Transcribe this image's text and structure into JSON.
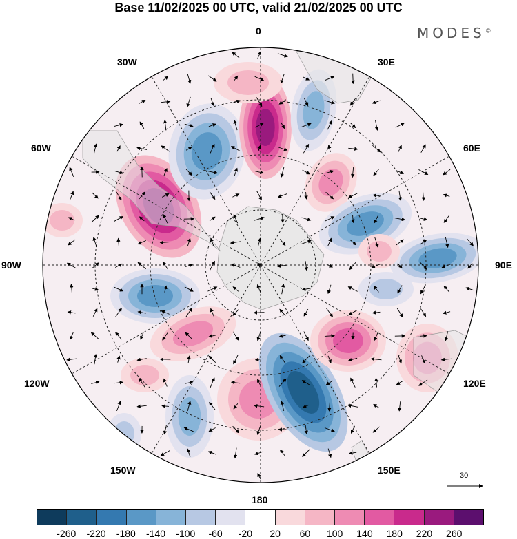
{
  "title": "Base 11/02/2025 00 UTC, valid 21/02/2025 00 UTC",
  "brand": "MODES",
  "brand_mark": "©",
  "map": {
    "projection": "south-polar-stereographic",
    "longitude_labels": {
      "top": "0",
      "top_right": "30E",
      "upper_right": "60E",
      "right": "90E",
      "lower_right": "120E",
      "bottom_right": "150E",
      "bottom": "180",
      "bottom_left": "150W",
      "lower_left": "120W",
      "left": "90W",
      "upper_left": "60W",
      "top_left": "30W"
    },
    "reference_vector_label": "30"
  },
  "colorbar": {
    "colors": [
      "#0e3b5c",
      "#1f5f8b",
      "#3479b0",
      "#5a98c6",
      "#87b4d8",
      "#b7c8e3",
      "#e2e2ef",
      "#ffffff",
      "#f9d9dc",
      "#f5b6c5",
      "#ee8bb3",
      "#e25aa2",
      "#c92a8c",
      "#9a1a7e",
      "#5c0f6e"
    ],
    "tick_labels": [
      "-260",
      "-220",
      "-180",
      "-140",
      "-100",
      "-60",
      "-20",
      "20",
      "60",
      "100",
      "140",
      "180",
      "220",
      "260"
    ]
  }
}
